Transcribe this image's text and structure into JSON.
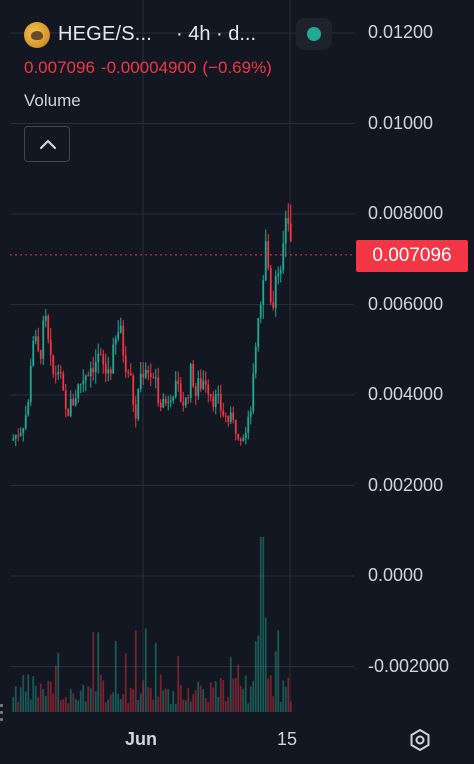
{
  "header": {
    "symbol": "HEGE/S...",
    "interval": "· 4h · d...",
    "last_price": "0.007096",
    "change": "-0.00004900",
    "change_pct": "(−0.69%)",
    "volume_label": "Volume",
    "status_color": "#22ab94"
  },
  "price_badge": "0.007096",
  "icons": {
    "collapse": "chevron-up-icon",
    "settings": "gear-icon",
    "status": "status-dot-icon",
    "logo": "hege-logo-icon"
  },
  "colors": {
    "background": "#131722",
    "up": "#22ab94",
    "down": "#f23645",
    "grid": "#2a2e39",
    "text": "#d1d4dc"
  },
  "chart_data": {
    "type": "candlestick",
    "y_axis_labels": [
      "0.01200",
      "0.01000",
      "0.008000",
      "0.006000",
      "0.004000",
      "0.002000",
      "0.0000",
      "-0.002000"
    ],
    "y_ticks": [
      0.012,
      0.01,
      0.008,
      0.006,
      0.004,
      0.002,
      0.0,
      -0.002
    ],
    "x_axis_labels": [
      "Jun",
      "15"
    ],
    "last_price": 0.007096,
    "grid": true,
    "close_path": [
      [
        0,
        0.003
      ],
      [
        3,
        0.0033
      ],
      [
        5,
        0.0038
      ],
      [
        6,
        0.0054
      ],
      [
        8,
        0.0048
      ],
      [
        10,
        0.0056
      ],
      [
        12,
        0.0044
      ],
      [
        14,
        0.0046
      ],
      [
        16,
        0.0036
      ],
      [
        18,
        0.0038
      ],
      [
        20,
        0.0042
      ],
      [
        22,
        0.0045
      ],
      [
        24,
        0.0047
      ],
      [
        26,
        0.0048
      ],
      [
        28,
        0.0045
      ],
      [
        30,
        0.0047
      ],
      [
        32,
        0.0055
      ],
      [
        34,
        0.0048
      ],
      [
        36,
        0.0042
      ],
      [
        37,
        0.0033
      ],
      [
        38,
        0.0043
      ],
      [
        40,
        0.0047
      ],
      [
        42,
        0.0044
      ],
      [
        44,
        0.004
      ],
      [
        46,
        0.0038
      ],
      [
        48,
        0.0042
      ],
      [
        50,
        0.004
      ],
      [
        52,
        0.0038
      ],
      [
        54,
        0.0046
      ],
      [
        55,
        0.004
      ],
      [
        56,
        0.0042
      ],
      [
        58,
        0.0044
      ],
      [
        60,
        0.004
      ],
      [
        62,
        0.0038
      ],
      [
        64,
        0.0035
      ],
      [
        66,
        0.0034
      ],
      [
        68,
        0.0032
      ],
      [
        70,
        0.0031
      ],
      [
        71,
        0.0034
      ],
      [
        72,
        0.0039
      ],
      [
        73,
        0.0048
      ],
      [
        74,
        0.0055
      ],
      [
        75,
        0.006
      ],
      [
        76,
        0.0073
      ],
      [
        77,
        0.0068
      ],
      [
        78,
        0.006
      ],
      [
        79,
        0.0066
      ],
      [
        80,
        0.0063
      ],
      [
        81,
        0.007
      ],
      [
        82,
        0.0076
      ],
      [
        83,
        0.0074
      ],
      [
        84,
        0.0071
      ]
    ],
    "x_range": [
      0,
      84
    ],
    "ylim": [
      -0.0025,
      0.0128
    ]
  }
}
